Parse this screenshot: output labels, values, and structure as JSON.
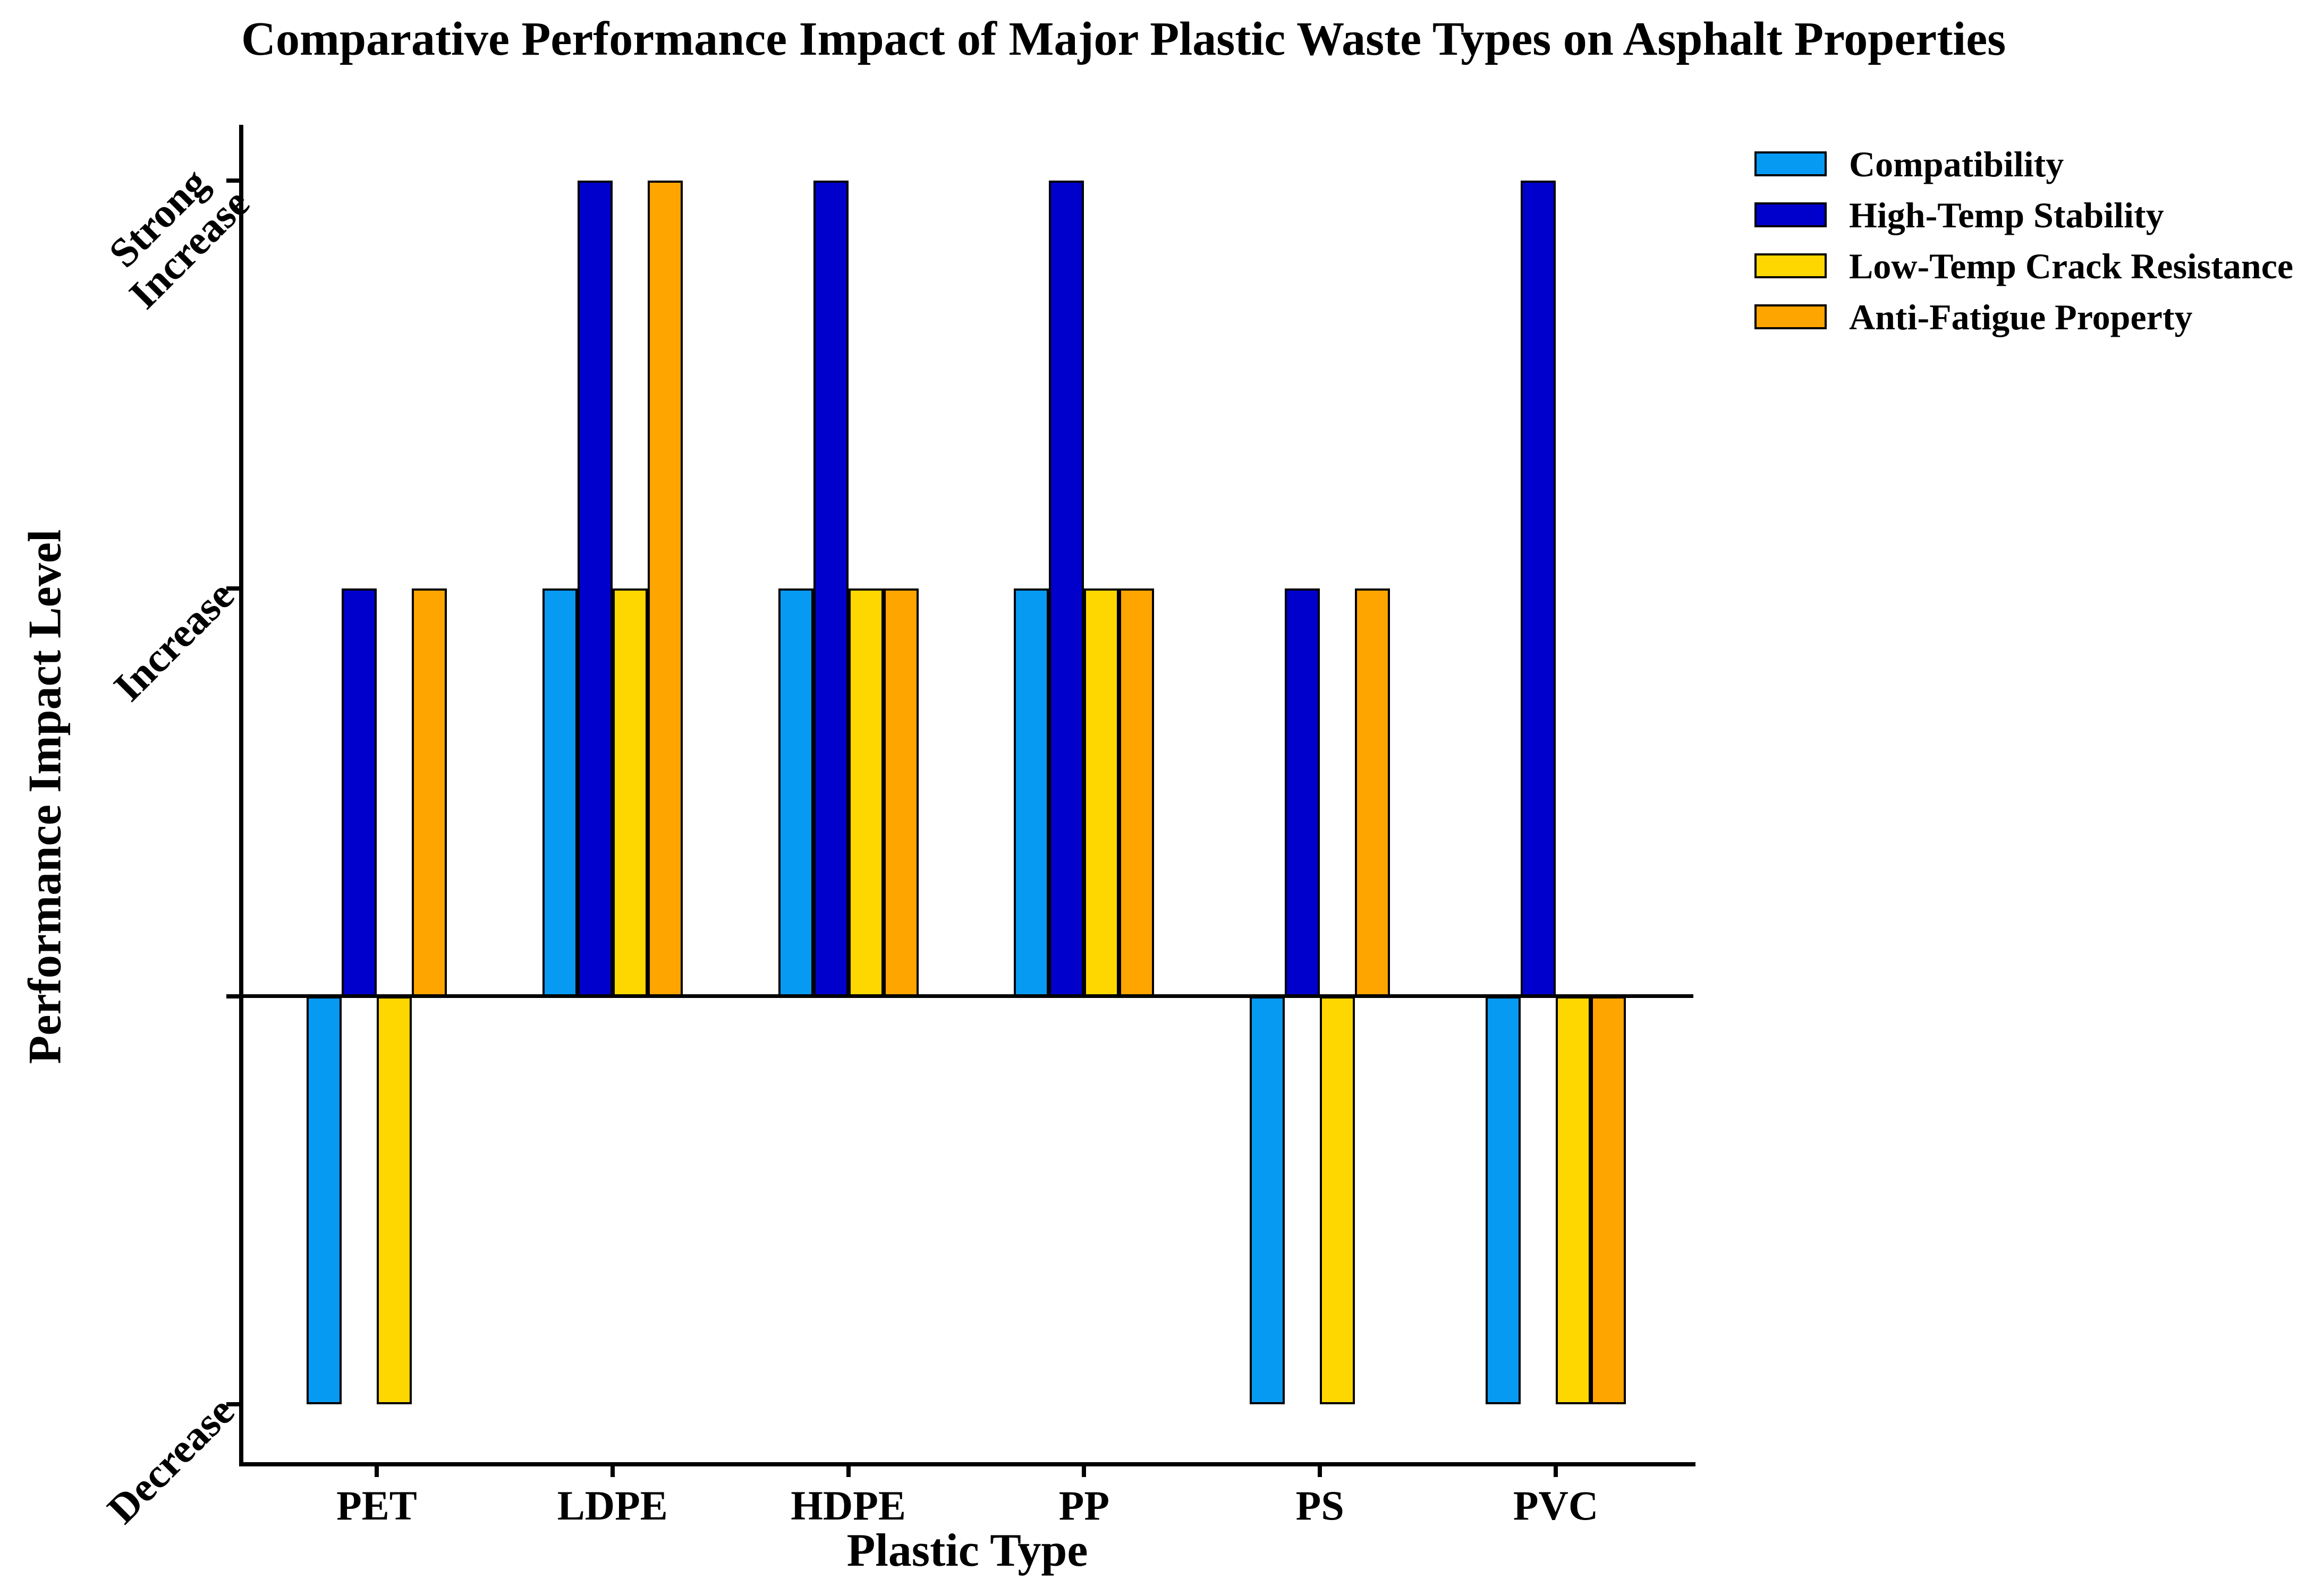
{
  "chart_data": {
    "type": "bar",
    "title": "Comparative Performance Impact of Major Plastic Waste Types on Asphalt Properties",
    "xlabel": "Plastic Type",
    "ylabel": "Performance Impact Level",
    "categories": [
      "PET",
      "LDPE",
      "HDPE",
      "PP",
      "PS",
      "PVC"
    ],
    "series": [
      {
        "name": "Compatibility",
        "color": "#069AF3",
        "values": [
          -1,
          1,
          1,
          1,
          -1,
          -1
        ]
      },
      {
        "name": "High-Temp Stability",
        "color": "#0000CD",
        "values": [
          1,
          2,
          2,
          2,
          1,
          2
        ]
      },
      {
        "name": "Low-Temp Crack Resistance",
        "color": "#FFD700",
        "values": [
          -1,
          1,
          1,
          1,
          -1,
          -1
        ]
      },
      {
        "name": "Anti-Fatigue Property",
        "color": "#FFA500",
        "values": [
          1,
          2,
          1,
          1,
          1,
          -1
        ]
      }
    ],
    "yticks": [
      {
        "value": 2,
        "label": "Strong\nIncrease"
      },
      {
        "value": 1,
        "label": "Increase"
      },
      {
        "value": 0,
        "label": ""
      },
      {
        "value": -1,
        "label": "Decrease"
      }
    ],
    "ylim": [
      -1.15,
      2.12
    ],
    "grid": false,
    "bar_edge_color": "#000000",
    "legend_position": "upper right, outside plot"
  }
}
